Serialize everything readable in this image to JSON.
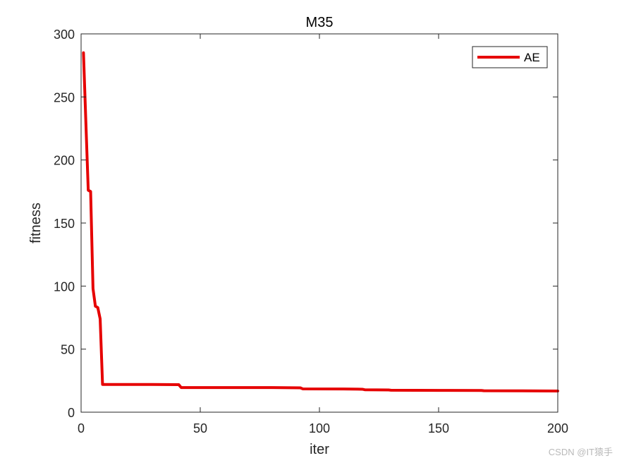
{
  "chart_data": {
    "type": "line",
    "title": "M35",
    "xlabel": "iter",
    "ylabel": "fitness",
    "xlim": [
      0,
      200
    ],
    "ylim": [
      0,
      300
    ],
    "xticks": [
      0,
      50,
      100,
      150,
      200
    ],
    "yticks": [
      0,
      50,
      100,
      150,
      200,
      250,
      300
    ],
    "grid": false,
    "legend_position": "top-right",
    "series": [
      {
        "name": "AE",
        "color": "#e60000",
        "x": [
          1,
          2,
          3,
          4,
          5,
          6,
          7,
          8,
          9,
          10,
          20,
          30,
          41,
          42,
          60,
          80,
          92,
          93,
          110,
          118,
          119,
          129,
          130,
          150,
          168,
          169,
          185,
          200
        ],
        "y": [
          285,
          230,
          176,
          175,
          98,
          84,
          83,
          74,
          22,
          22,
          22,
          22,
          21.8,
          19.5,
          19.5,
          19.5,
          19.3,
          18.5,
          18.4,
          18.2,
          17.8,
          17.6,
          17.4,
          17.3,
          17.2,
          17.0,
          16.9,
          16.8
        ]
      }
    ]
  },
  "watermark": "CSDN @IT猿手"
}
